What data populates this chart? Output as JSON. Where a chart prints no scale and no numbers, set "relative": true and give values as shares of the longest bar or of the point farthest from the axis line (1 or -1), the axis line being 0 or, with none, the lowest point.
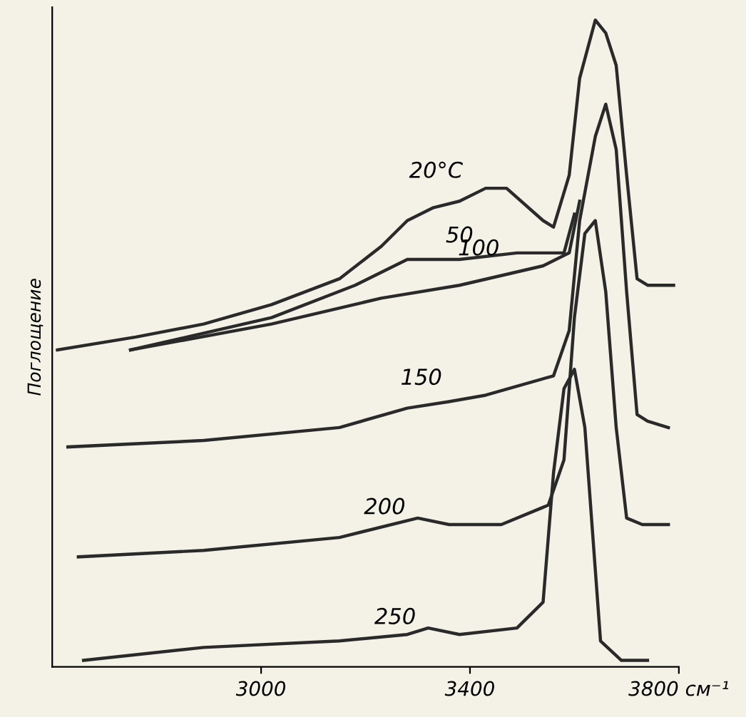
{
  "chart_data": {
    "type": "line",
    "relative": true,
    "ylabel": "Поглощение",
    "xlim": [
      2600,
      3800
    ],
    "xticks": [
      3000,
      3400,
      {
        "value": 3800,
        "label": "3800 см⁻¹"
      }
    ],
    "tick_labels": "x",
    "grid": false,
    "legend": false,
    "marker": "none",
    "line_style": "solid",
    "series": [
      {
        "color": "#2a2a2a",
        "x": [
          2610,
          2760,
          2890,
          3020,
          3150,
          3230,
          3280,
          3330,
          3380,
          3430,
          3470,
          3540,
          3560,
          3590,
          3610,
          3640,
          3660,
          3680,
          3700,
          3720,
          3740,
          3790
        ],
        "values": [
          0.49,
          0.51,
          0.53,
          0.56,
          0.6,
          0.65,
          0.69,
          0.71,
          0.72,
          0.74,
          0.74,
          0.69,
          0.68,
          0.76,
          0.91,
          1.0,
          0.98,
          0.93,
          0.76,
          0.6,
          0.59,
          0.59
        ]
      },
      {
        "color": "#2a2a2a",
        "x": [
          2750,
          3020,
          3180,
          3280,
          3380,
          3490,
          3580,
          3600
        ],
        "values": [
          0.49,
          0.54,
          0.59,
          0.63,
          0.63,
          0.64,
          0.64,
          0.7
        ]
      },
      {
        "color": "#2a2a2a",
        "x": [
          2750,
          3020,
          3230,
          3380,
          3540,
          3590,
          3610
        ],
        "values": [
          0.49,
          0.53,
          0.57,
          0.59,
          0.62,
          0.64,
          0.72
        ]
      },
      {
        "color": "#2a2a2a",
        "x": [
          2630,
          2890,
          3150,
          3280,
          3360,
          3430,
          3560,
          3590,
          3610,
          3640,
          3660,
          3680,
          3700,
          3720,
          3740,
          3780
        ],
        "values": [
          0.34,
          0.35,
          0.37,
          0.4,
          0.41,
          0.42,
          0.45,
          0.52,
          0.69,
          0.82,
          0.87,
          0.8,
          0.58,
          0.39,
          0.38,
          0.37
        ]
      },
      {
        "color": "#2a2a2a",
        "x": [
          2650,
          2890,
          3150,
          3300,
          3360,
          3460,
          3550,
          3580,
          3600,
          3620,
          3640,
          3660,
          3680,
          3700,
          3730,
          3780
        ],
        "values": [
          0.17,
          0.18,
          0.2,
          0.23,
          0.22,
          0.22,
          0.25,
          0.32,
          0.54,
          0.67,
          0.69,
          0.58,
          0.37,
          0.23,
          0.22,
          0.22
        ]
      },
      {
        "color": "#2a2a2a",
        "x": [
          2660,
          2890,
          3150,
          3280,
          3320,
          3380,
          3490,
          3540,
          3560,
          3580,
          3600,
          3620,
          3640,
          3650,
          3690,
          3740
        ],
        "values": [
          0.01,
          0.03,
          0.04,
          0.05,
          0.06,
          0.05,
          0.06,
          0.1,
          0.3,
          0.43,
          0.46,
          0.37,
          0.15,
          0.04,
          0.01,
          0.01
        ]
      }
    ],
    "annotations": [
      {
        "text": "20°C",
        "x": 3470,
        "y": 0.74
      },
      {
        "text": "50",
        "x": 3490,
        "y": 0.64
      },
      {
        "text": "100",
        "x": 3540,
        "y": 0.62
      },
      {
        "text": "150",
        "x": 3430,
        "y": 0.42
      },
      {
        "text": "200",
        "x": 3360,
        "y": 0.22
      },
      {
        "text": "250",
        "x": 3380,
        "y": 0.05
      }
    ]
  }
}
